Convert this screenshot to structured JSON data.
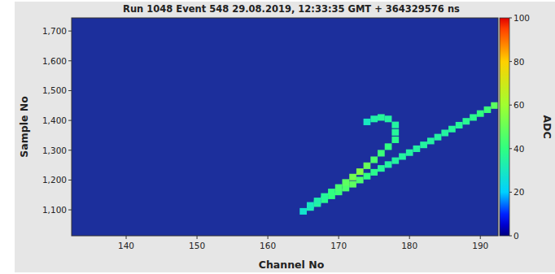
{
  "chart_data": {
    "type": "heatmap",
    "title": "Run 1048 Event 548 29.08.2019, 12:33:35 GMT + 364329576 ns",
    "x_label": "Channel No",
    "y_label": "Sample No",
    "xlim": [
      132.3,
      192.5
    ],
    "xticks": [
      140,
      150,
      160,
      170,
      180,
      190
    ],
    "ylim": [
      1013,
      1744
    ],
    "yticks": [
      {
        "value": 1100,
        "label": "1,100"
      },
      {
        "value": 1200,
        "label": "1,200"
      },
      {
        "value": 1300,
        "label": "1,300"
      },
      {
        "value": 1400,
        "label": "1,400"
      },
      {
        "value": 1500,
        "label": "1,500"
      },
      {
        "value": 1600,
        "label": "1,600"
      },
      {
        "value": 1700,
        "label": "1,700"
      }
    ],
    "cell_x": [
      165,
      166,
      167,
      168,
      169,
      170,
      171,
      172,
      173,
      174,
      175,
      176,
      177,
      178,
      179,
      180,
      181,
      182,
      183,
      184,
      185,
      186,
      187,
      188,
      189,
      190,
      191,
      192,
      166,
      167,
      168,
      169,
      170,
      171,
      172,
      173,
      174,
      175,
      176,
      177,
      178,
      178,
      178,
      177,
      176,
      175,
      174
    ],
    "cell_y": [
      1095,
      1108,
      1121,
      1134,
      1147,
      1160,
      1173,
      1186,
      1200,
      1213,
      1226,
      1239,
      1252,
      1265,
      1279,
      1292,
      1305,
      1318,
      1331,
      1344,
      1358,
      1371,
      1384,
      1397,
      1410,
      1423,
      1436,
      1450,
      1115,
      1130,
      1145,
      1160,
      1175,
      1192,
      1210,
      1228,
      1248,
      1268,
      1290,
      1312,
      1335,
      1360,
      1385,
      1405,
      1410,
      1405,
      1395
    ],
    "cell_values": [
      28,
      32,
      35,
      38,
      40,
      42,
      45,
      48,
      45,
      40,
      38,
      36,
      35,
      35,
      35,
      35,
      35,
      35,
      35,
      35,
      35,
      36,
      36,
      37,
      38,
      40,
      42,
      48,
      30,
      33,
      36,
      40,
      44,
      48,
      52,
      55,
      50,
      45,
      42,
      40,
      38,
      36,
      35,
      35,
      36,
      34,
      30
    ],
    "colorbar_label": "ADC",
    "colorbar_lim": [
      0,
      100
    ],
    "colorbar_ticks": [
      0,
      20,
      40,
      60,
      80,
      100
    ]
  }
}
